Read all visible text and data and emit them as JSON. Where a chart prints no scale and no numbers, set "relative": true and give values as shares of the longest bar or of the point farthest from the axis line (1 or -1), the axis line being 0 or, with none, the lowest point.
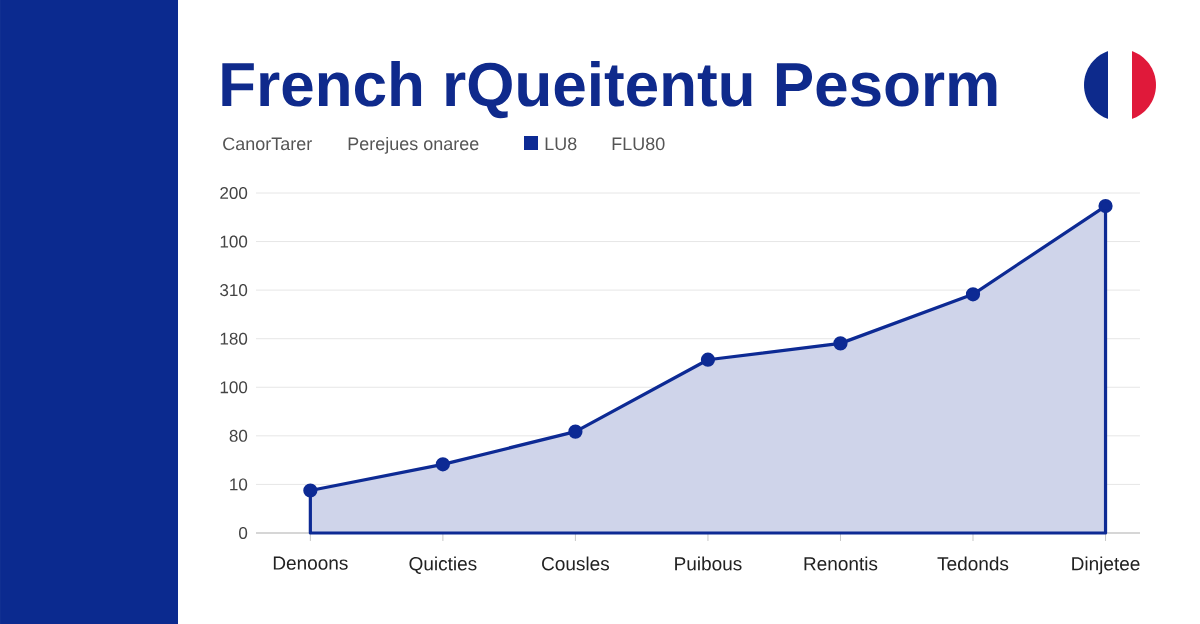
{
  "chart_data": {
    "type": "area",
    "title": "French rQueitentu Pesorm",
    "legend_title": "CanorTarer",
    "annotations": [
      "Perejues onaree",
      "FLU80",
      "200",
      "100",
      "310",
      "180",
      "100",
      "80",
      "10",
      "0"
    ],
    "categories": [
      "Denoons",
      "Quicties",
      "Cousles",
      "Puibous",
      "Renontis",
      "Tedonds",
      "Dinjetee"
    ],
    "series": [
      {
        "name": "LU8",
        "color": "#0d2a94",
        "values": [
          0.13,
          0.21,
          0.31,
          0.53,
          0.58,
          0.73,
          1
        ]
      }
    ],
    "relative": true,
    "grid": "y",
    "legend": "top left",
    "marker": "circle",
    "line_style": "solid"
  }
}
